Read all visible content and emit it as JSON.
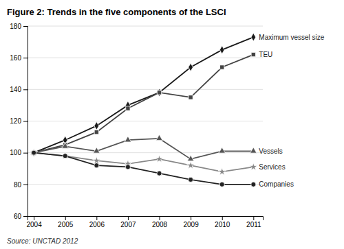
{
  "chart_data": {
    "type": "line",
    "title": "Figure 2: Trends in the five components of the LSCI",
    "annotations": [
      "Source: UNCTAD 2012"
    ],
    "x": [
      2004,
      2005,
      2006,
      2007,
      2008,
      2009,
      2010,
      2011
    ],
    "xlim": [
      2003.8,
      2011.3
    ],
    "xticks": [
      2004,
      2005,
      2006,
      2007,
      2008,
      2009,
      2010,
      2011
    ],
    "ylim": [
      60,
      180
    ],
    "yticks": [
      60,
      80,
      100,
      120,
      140,
      160,
      180
    ],
    "grid": true,
    "series": [
      {
        "name": "Maximum vessel size",
        "color": "#1a1a1a",
        "marker": "diamond",
        "values": [
          100,
          108,
          117,
          130,
          138,
          154,
          165,
          173
        ]
      },
      {
        "name": "TEU",
        "color": "#444444",
        "marker": "square",
        "values": [
          100,
          105,
          113,
          128,
          138,
          135,
          154,
          162
        ]
      },
      {
        "name": "Vessels",
        "color": "#555555",
        "marker": "triangle",
        "values": [
          100,
          104,
          101,
          108,
          109,
          96,
          101,
          101
        ]
      },
      {
        "name": "Services",
        "color": "#888888",
        "marker": "star",
        "values": [
          100,
          98,
          95,
          93,
          96,
          92,
          88,
          91
        ]
      },
      {
        "name": "Companies",
        "color": "#222222",
        "marker": "circle",
        "values": [
          100,
          98,
          92,
          91,
          87,
          83,
          80,
          80
        ]
      }
    ]
  }
}
